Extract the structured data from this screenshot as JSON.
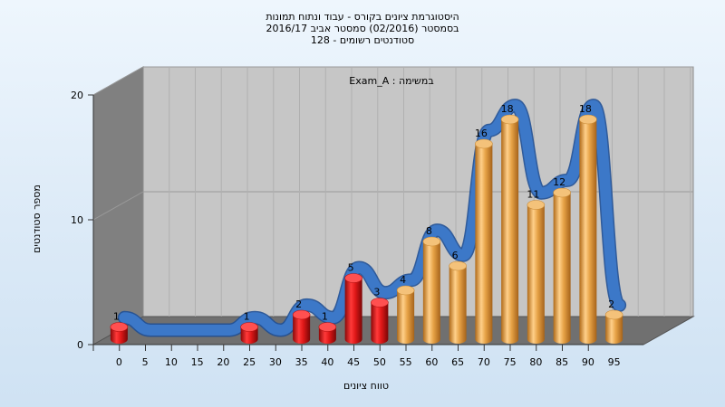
{
  "chart_data": {
    "type": "bar",
    "title_lines": [
      "היסטוגרמת ציונים בקורס - עבוד ונתוח תמונות",
      "בסמסטר  (02/2016)  סמסטר אביב 2016/17",
      "סטודנטים רשומים - 128"
    ],
    "annotation": "Exam_A : במשימה",
    "xlabel": "טווח ציונים",
    "ylabel": "מספר סטודנטים",
    "x_ticks": [
      "0",
      "5",
      "10",
      "15",
      "20",
      "25",
      "30",
      "35",
      "40",
      "45",
      "50",
      "55",
      "60",
      "65",
      "70",
      "75",
      "80",
      "85",
      "90",
      "95"
    ],
    "y_ticks": [
      "0",
      "10",
      "20"
    ],
    "ylim": [
      0,
      20
    ],
    "categories": [
      "0",
      "5",
      "10",
      "15",
      "20",
      "25",
      "30",
      "35",
      "40",
      "45",
      "50",
      "55",
      "60",
      "65",
      "70",
      "75",
      "80",
      "85",
      "90",
      "95"
    ],
    "values": [
      1,
      0,
      0,
      0,
      0,
      1,
      0,
      2,
      1,
      5,
      3,
      4,
      8,
      6,
      16,
      18,
      11,
      12,
      18,
      2
    ],
    "value_labels": [
      "1",
      "",
      "",
      "",
      "",
      "1",
      "",
      "2",
      "1",
      "5",
      "3",
      "4",
      "8",
      "6",
      "16",
      "18",
      "11",
      "12",
      "18",
      "2"
    ],
    "fail_threshold_index": 11,
    "colors": {
      "fail_bar": "#e01818",
      "pass_bar": "#e6a246",
      "trend_line": "#3c78c8",
      "floor": "#6f6f6f",
      "back_wall": "#c4c4c4",
      "side_wall": "#7f7f7f"
    },
    "grid": true,
    "legend": "none"
  }
}
